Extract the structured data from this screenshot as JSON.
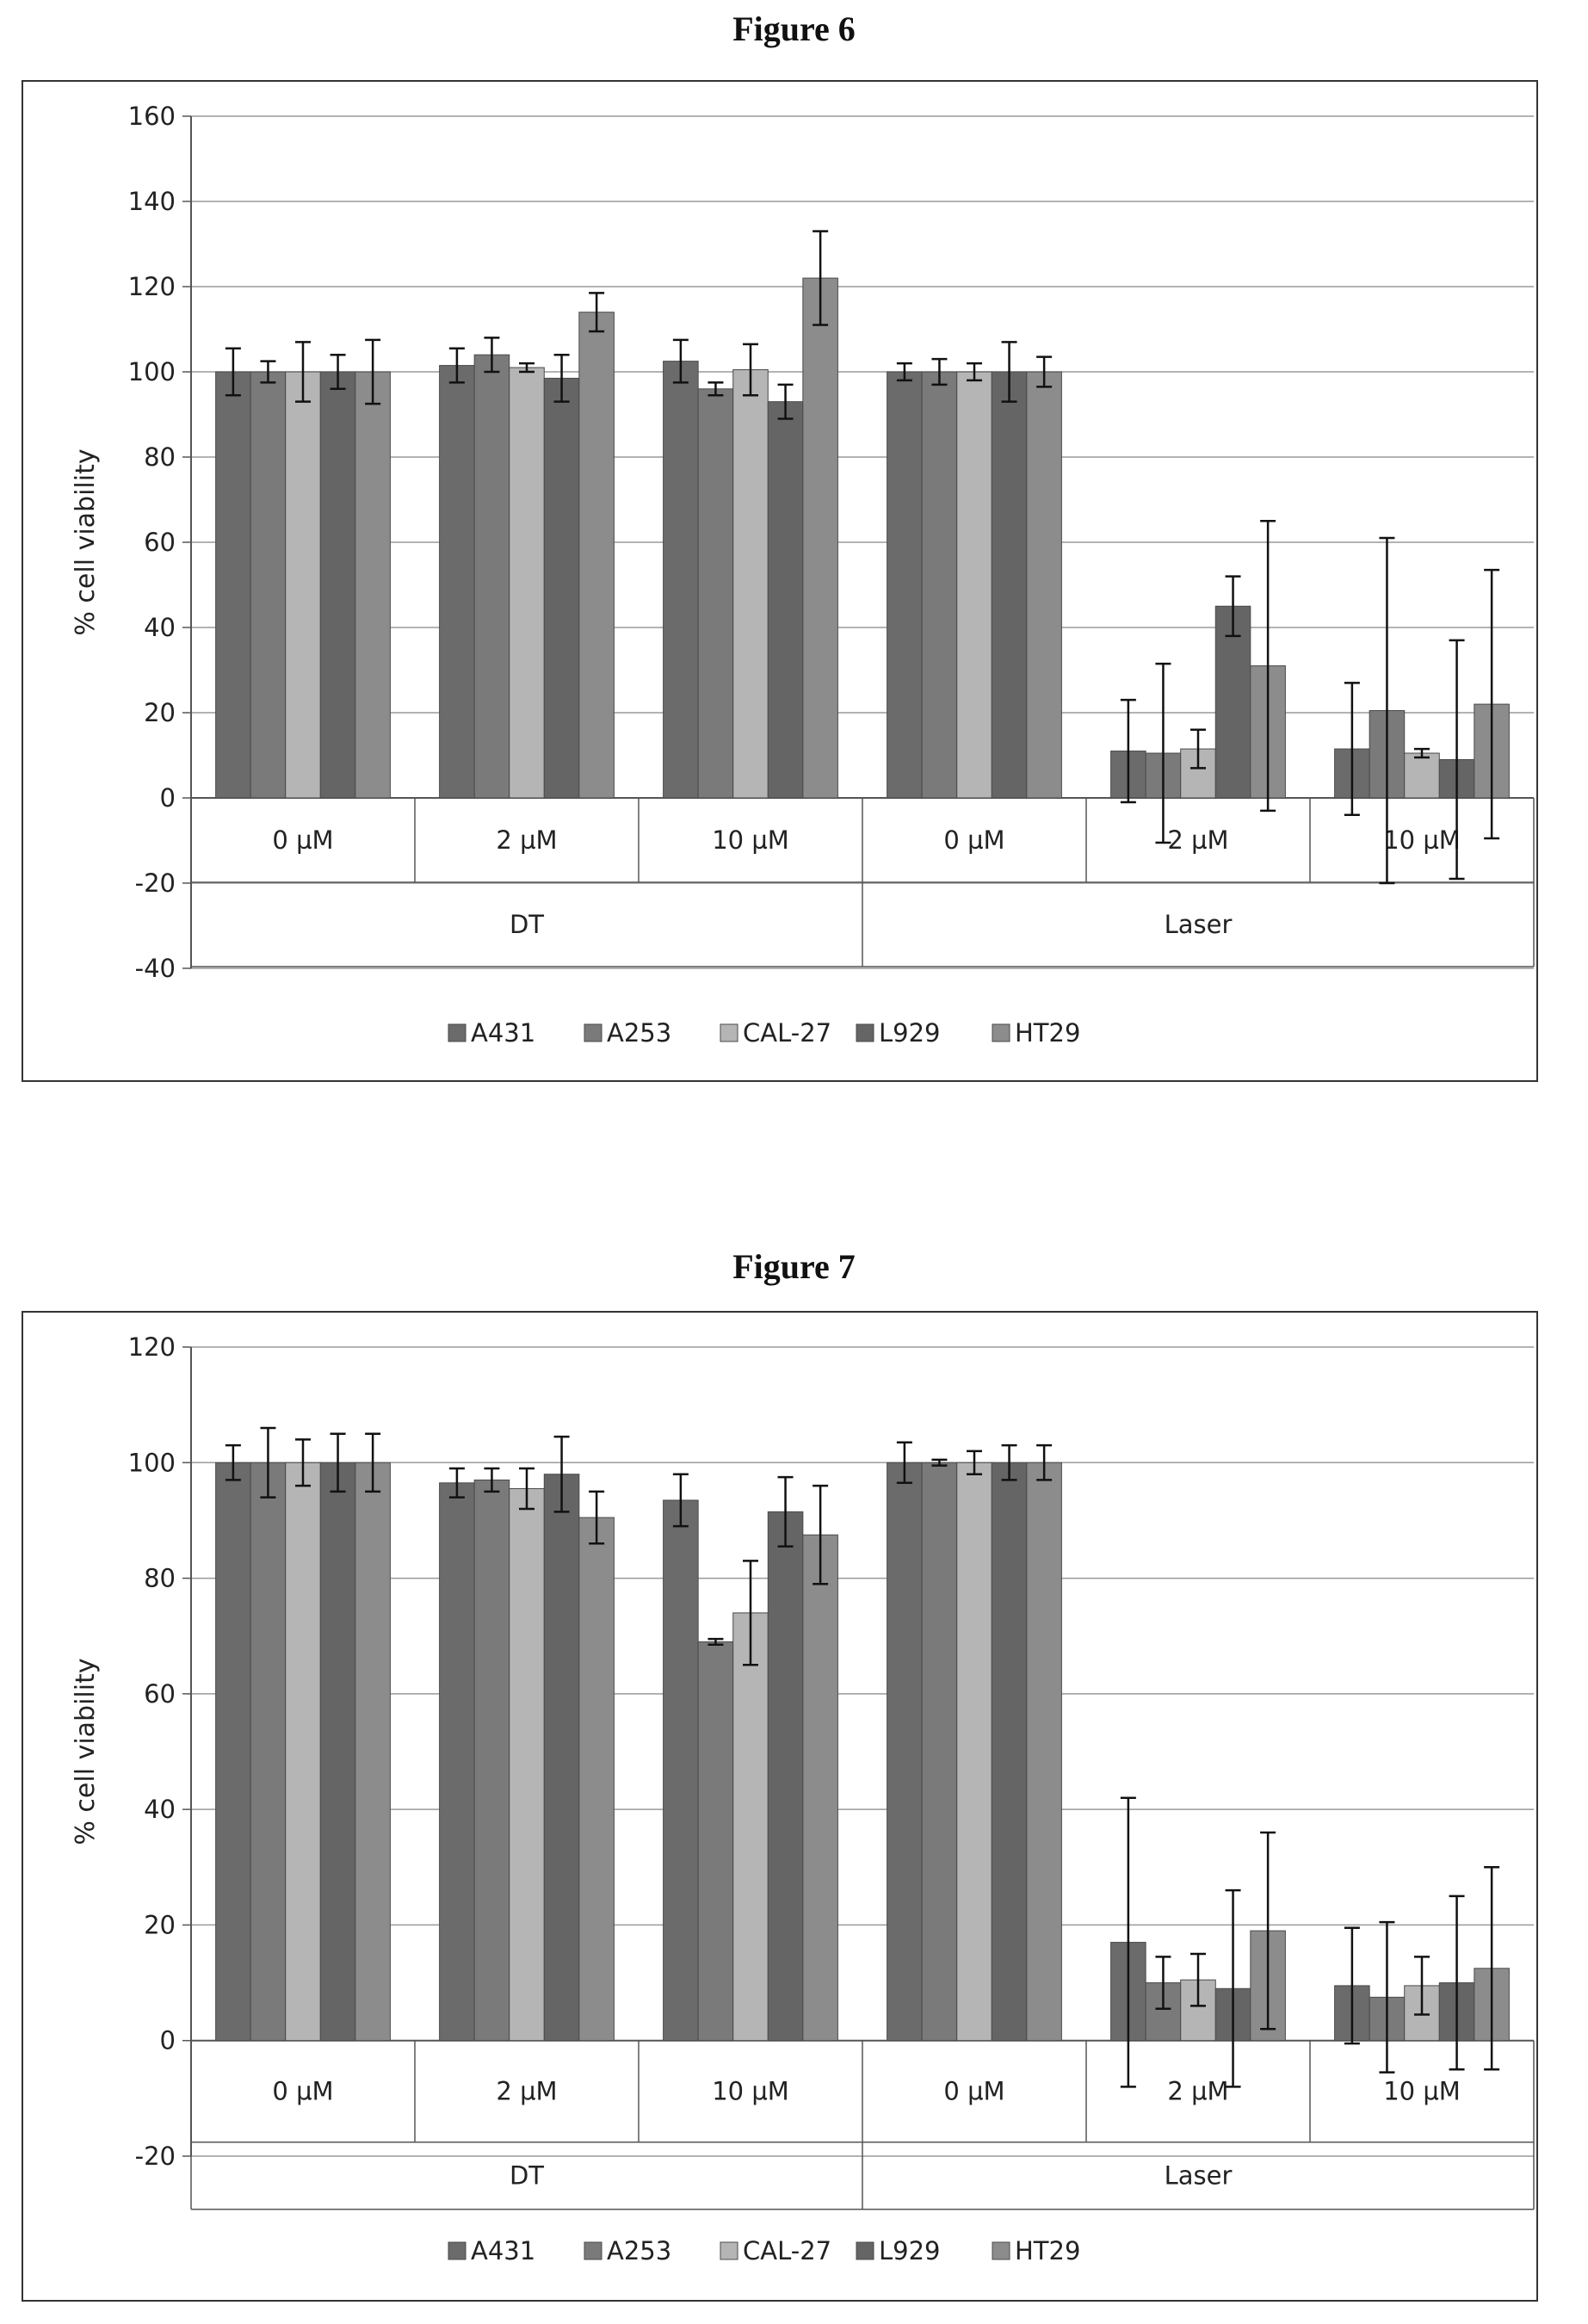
{
  "figures": [
    {
      "title": "Figure 6",
      "chart_data": {
        "type": "bar",
        "ylabel": "% cell viability",
        "ylim": [
          -40,
          160
        ],
        "yticks": [
          -40,
          -20,
          0,
          20,
          40,
          60,
          80,
          100,
          120,
          140,
          160
        ],
        "grid": true,
        "legend": "bottom",
        "categories": [
          "0 µM",
          "2 µM",
          "10 µM",
          "0 µM",
          "2 µM",
          "10 µM"
        ],
        "groups": [
          {
            "label": "DT",
            "span": [
              0,
              2
            ]
          },
          {
            "label": "Laser",
            "span": [
              3,
              5
            ]
          }
        ],
        "series": [
          {
            "name": "A431",
            "color": "#6b6b6b",
            "values": [
              100,
              101.5,
              102.5,
              100,
              11,
              11.5
            ],
            "errors": [
              5.5,
              4,
              5,
              2,
              12,
              15.5
            ]
          },
          {
            "name": "A253",
            "color": "#7a7a7a",
            "values": [
              100,
              104,
              96,
              100,
              10.5,
              20.5
            ],
            "errors": [
              2.5,
              4,
              1.5,
              3,
              21,
              40.5
            ]
          },
          {
            "name": "CAL-27",
            "color": "#b5b5b5",
            "values": [
              100,
              101,
              100.5,
              100,
              11.5,
              10.5
            ],
            "errors": [
              7,
              1,
              6,
              2,
              4.5,
              1
            ]
          },
          {
            "name": "L929",
            "color": "#656565",
            "values": [
              100,
              98.5,
              93,
              100,
              45,
              9
            ],
            "errors": [
              4,
              5.5,
              4,
              7,
              7,
              28
            ]
          },
          {
            "name": "HT29",
            "color": "#8c8c8c",
            "values": [
              100,
              114,
              122,
              100,
              31,
              22
            ],
            "errors": [
              7.5,
              4.5,
              11,
              3.5,
              34,
              31.5
            ]
          }
        ]
      }
    },
    {
      "title": "Figure 7",
      "chart_data": {
        "type": "bar",
        "ylabel": "% cell viability",
        "ylim": [
          -20,
          120
        ],
        "yticks": [
          -20,
          0,
          20,
          40,
          60,
          80,
          100,
          120
        ],
        "grid": true,
        "legend": "bottom",
        "categories": [
          "0 µM",
          "2 µM",
          "10 µM",
          "0 µM",
          "2 µM",
          "10 µM"
        ],
        "groups": [
          {
            "label": "DT",
            "span": [
              0,
              2
            ]
          },
          {
            "label": "Laser",
            "span": [
              3,
              5
            ]
          }
        ],
        "series": [
          {
            "name": "A431",
            "color": "#6b6b6b",
            "values": [
              100,
              96.5,
              93.5,
              100,
              17,
              9.5
            ],
            "errors": [
              3,
              2.5,
              4.5,
              3.5,
              25,
              10
            ]
          },
          {
            "name": "A253",
            "color": "#7a7a7a",
            "values": [
              100,
              97,
              69,
              100,
              10,
              7.5
            ],
            "errors": [
              6,
              2,
              0.5,
              0.5,
              4.5,
              13
            ]
          },
          {
            "name": "CAL-27",
            "color": "#b5b5b5",
            "values": [
              100,
              95.5,
              74,
              100,
              10.5,
              9.5
            ],
            "errors": [
              4,
              3.5,
              9,
              2,
              4.5,
              5
            ]
          },
          {
            "name": "L929",
            "color": "#656565",
            "values": [
              100,
              98,
              91.5,
              100,
              9,
              10
            ],
            "errors": [
              5,
              6.5,
              6,
              3,
              17,
              15
            ]
          },
          {
            "name": "HT29",
            "color": "#8c8c8c",
            "values": [
              100,
              90.5,
              87.5,
              100,
              19,
              12.5
            ],
            "errors": [
              5,
              4.5,
              8.5,
              3,
              17,
              17.5
            ]
          }
        ]
      }
    }
  ]
}
